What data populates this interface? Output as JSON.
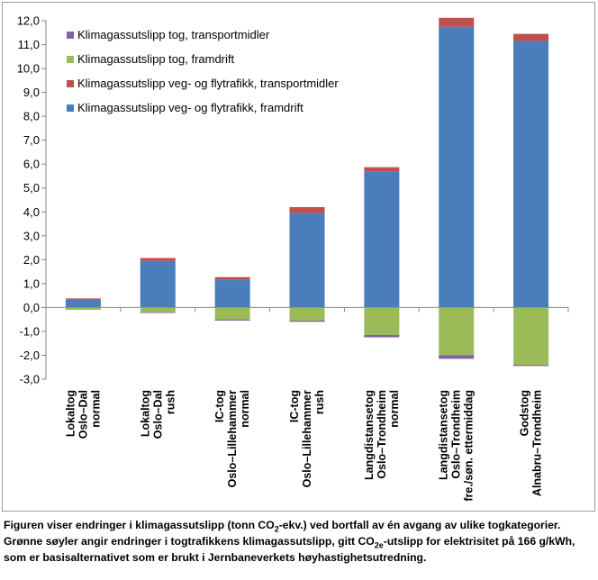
{
  "chart_data": {
    "type": "bar",
    "stacked": true,
    "ylim": [
      -3.0,
      12.0
    ],
    "y_step": 1.0,
    "y_ticks": [
      "12,0",
      "11,0",
      "10,0",
      "9,0",
      "8,0",
      "7,0",
      "6,0",
      "5,0",
      "4,0",
      "3,0",
      "2,0",
      "1,0",
      "0,0",
      "-1,0",
      "-2,0",
      "-3,0"
    ],
    "categories": [
      [
        "Lokaltog",
        "Oslo–Dal",
        "normal"
      ],
      [
        "Lokaltog",
        "Oslo–Dal",
        "rush"
      ],
      [
        "IC-tog",
        "Oslo–Lillehammer",
        "normal"
      ],
      [
        "IC-tog",
        "Oslo–Lillehammer",
        "rush"
      ],
      [
        "Langdistansetog",
        "Oslo–Trondheim",
        "normal"
      ],
      [
        "Langdistansetog",
        "Oslo–Trondheim",
        "fre./søn. ettermiddag"
      ],
      [
        "Godstog",
        "Alnabru–Trondheim"
      ]
    ],
    "series": [
      {
        "name": "Klimagassutslipp veg- og flytrafikk, framdrift",
        "color": "#4a7ebb",
        "values": [
          0.35,
          1.95,
          1.15,
          3.95,
          5.7,
          11.75,
          11.15
        ]
      },
      {
        "name": "Klimagassutslipp veg- og flytrafikk, transportmidler",
        "color": "#c0504d",
        "values": [
          0.03,
          0.12,
          0.12,
          0.25,
          0.17,
          0.37,
          0.3
        ]
      },
      {
        "name": "Klimagassutslipp tog, framdrift",
        "color": "#9bbb59",
        "values": [
          -0.1,
          -0.2,
          -0.5,
          -0.55,
          -1.15,
          -2.0,
          -2.4
        ]
      },
      {
        "name": "Klimagassutslipp tog, transportmidler",
        "color": "#8064a2",
        "values": [
          0.0,
          -0.02,
          -0.05,
          -0.05,
          -0.1,
          -0.15,
          -0.05
        ]
      }
    ],
    "legend_order": [
      "Klimagassutslipp tog, transportmidler",
      "Klimagassutslipp tog, framdrift",
      "Klimagassutslipp veg- og flytrafikk, transportmidler",
      "Klimagassutslipp veg- og flytrafikk, framdrift"
    ],
    "legend_position": "top-left"
  },
  "caption": {
    "part1": "Figuren viser endringer i klimagassutslipp (tonn CO",
    "sub1": "2",
    "part2": "-ekv.) ved bortfall av én avgang av ulike togkategorier. Grønne søyler angir endringer i togtrafikkens klimagassutslipp, gitt CO",
    "sub2": "2e",
    "part3": "-utslipp for elektrisitet på 166 g/kWh, som er basisalternativet som er brukt i Jernbaneverkets høyhastighetsutredning."
  }
}
